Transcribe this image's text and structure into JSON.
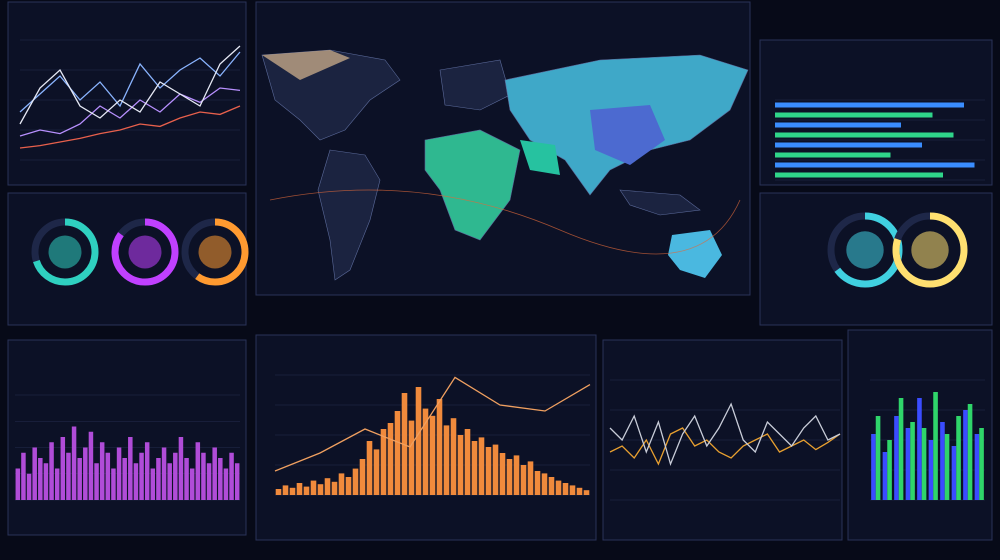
{
  "chart_data": [
    {
      "type": "line",
      "ylim": [
        0,
        100
      ],
      "series": [
        {
          "color": "#e8604c",
          "values": [
            10,
            12,
            15,
            18,
            22,
            25,
            30,
            28,
            35,
            40,
            38,
            45
          ]
        },
        {
          "color": "#b890ff",
          "values": [
            20,
            25,
            22,
            30,
            45,
            35,
            50,
            40,
            55,
            48,
            60,
            58
          ]
        },
        {
          "color": "#8ab4ff",
          "values": [
            40,
            55,
            70,
            50,
            65,
            45,
            80,
            60,
            75,
            85,
            70,
            90
          ]
        },
        {
          "color": "#e6e9f5",
          "values": [
            30,
            60,
            75,
            45,
            35,
            50,
            40,
            65,
            55,
            45,
            80,
            95
          ]
        }
      ]
    },
    {
      "type": "hbar",
      "ylim": [
        0,
        100
      ],
      "series": [
        {
          "color": "#3a8dff",
          "values": [
            90,
            60,
            70,
            95
          ]
        },
        {
          "color": "#2fd58a",
          "values": [
            75,
            85,
            55,
            80
          ]
        }
      ]
    },
    {
      "type": "gauge",
      "ylim": [
        0,
        100
      ],
      "values": [
        70,
        85,
        60
      ],
      "colors": [
        "#2fd0c0",
        "#c040ff",
        "#ff9a30"
      ]
    },
    {
      "type": "gauge",
      "ylim": [
        0,
        100
      ],
      "values": [
        65,
        80
      ],
      "colors": [
        "#40d0e0",
        "#ffe070"
      ]
    },
    {
      "type": "bar",
      "ylim": [
        0,
        100
      ],
      "series": [
        {
          "color": "#b04cd8",
          "values": [
            30,
            45,
            25,
            50,
            40,
            35,
            55,
            30,
            60,
            45,
            70,
            40,
            50,
            65,
            35,
            55,
            45,
            30,
            50,
            40,
            60,
            35,
            45,
            55,
            30,
            40,
            50,
            35,
            45,
            60,
            40,
            30,
            55,
            45,
            35,
            50,
            40,
            30,
            45,
            35
          ]
        }
      ]
    },
    {
      "type": "bar",
      "ylim": [
        0,
        100
      ],
      "series": [
        {
          "color": "#f08a3c",
          "values": [
            5,
            8,
            6,
            10,
            7,
            12,
            9,
            14,
            11,
            18,
            15,
            22,
            30,
            45,
            38,
            55,
            60,
            70,
            85,
            62,
            90,
            72,
            66,
            80,
            58,
            64,
            50,
            55,
            45,
            48,
            40,
            42,
            35,
            30,
            33,
            25,
            28,
            20,
            18,
            15,
            12,
            10,
            8,
            6,
            4
          ]
        },
        {
          "type": "line",
          "color": "#f0a060",
          "values": [
            20,
            35,
            55,
            40,
            98,
            75,
            70,
            92
          ]
        }
      ]
    },
    {
      "type": "line",
      "ylim": [
        0,
        100
      ],
      "series": [
        {
          "color": "#e8a030",
          "values": [
            40,
            45,
            35,
            50,
            30,
            55,
            60,
            45,
            50,
            40,
            35,
            45,
            50,
            55,
            40,
            45,
            50,
            42,
            48,
            55
          ]
        },
        {
          "color": "#c8ccd8",
          "values": [
            60,
            50,
            70,
            40,
            65,
            30,
            55,
            70,
            45,
            60,
            80,
            50,
            40,
            65,
            55,
            45,
            60,
            70,
            50,
            55
          ]
        }
      ]
    },
    {
      "type": "bar",
      "ylim": [
        0,
        100
      ],
      "series": [
        {
          "color": "#3a4cff",
          "values": [
            55,
            40,
            70,
            60,
            85,
            50,
            65,
            45,
            75,
            55
          ]
        },
        {
          "color": "#2fd56a",
          "values": [
            70,
            50,
            85,
            65,
            60,
            90,
            55,
            70,
            80,
            60
          ]
        }
      ]
    }
  ]
}
